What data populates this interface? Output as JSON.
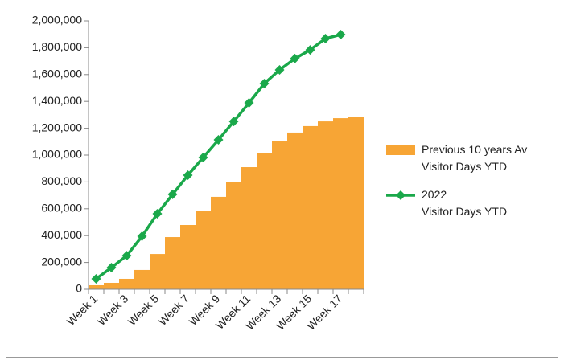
{
  "chart_data": {
    "type": "bar_line",
    "categories": [
      "Week 1",
      null,
      "Week 3",
      null,
      "Week 5",
      null,
      "Week 7",
      null,
      "Week 9",
      null,
      "Week 11",
      null,
      "Week 13",
      null,
      "Week 15",
      null,
      "Week 17",
      null
    ],
    "series": [
      {
        "name": "Previous 10 years Av\nVisitor Days YTD",
        "type": "bar",
        "color": "#f7a535",
        "values": [
          30000,
          48000,
          78000,
          144000,
          263000,
          389000,
          479000,
          581000,
          689000,
          802000,
          910000,
          1012000,
          1102000,
          1168000,
          1216000,
          1251000,
          1275000,
          1287000
        ]
      },
      {
        "name": "2022\nVisitor Days YTD",
        "type": "line",
        "color": "#1aa84a",
        "values": [
          78000,
          162000,
          251000,
          395000,
          563000,
          707000,
          850000,
          982000,
          1114000,
          1251000,
          1389000,
          1533000,
          1635000,
          1719000,
          1784000,
          1868000,
          1898000,
          null
        ]
      }
    ],
    "ylim": [
      0,
      2000000
    ],
    "yticks": [
      0,
      {
        "value": 200000,
        "label": "200,000"
      },
      {
        "value": 400000,
        "label": "400,000"
      },
      {
        "value": 600000,
        "label": "600,000"
      },
      {
        "value": 800000,
        "label": "800,000"
      },
      {
        "value": 1000000,
        "label": "1,000,000"
      },
      {
        "value": 1200000,
        "label": "1,200,000"
      },
      {
        "value": 1400000,
        "label": "1,400,000"
      },
      {
        "value": 1600000,
        "label": "1,600,000"
      },
      {
        "value": 1800000,
        "label": "1,800,000"
      },
      {
        "value": 2000000,
        "label": "2,000,000"
      }
    ],
    "legend": "right"
  }
}
